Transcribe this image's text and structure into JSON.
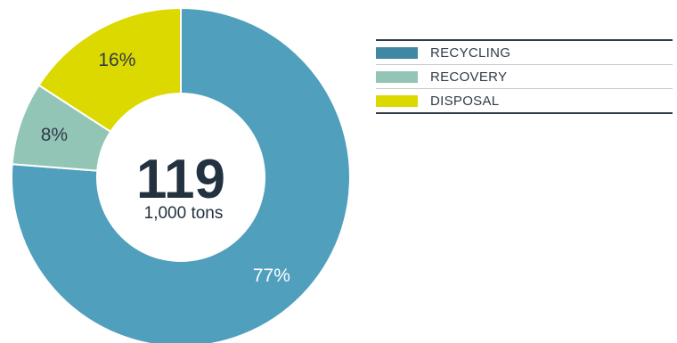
{
  "chart_data": {
    "type": "pie",
    "variant": "donut",
    "categories": [
      "RECYCLING",
      "RECOVERY",
      "DISPOSAL"
    ],
    "values": [
      77,
      8,
      16
    ],
    "value_labels": [
      "77%",
      "8%",
      "16%"
    ],
    "colors": [
      "#4f9fbd",
      "#93c5b7",
      "#dcd900"
    ],
    "legend_colors": [
      "#3f87a2",
      "#93c5b7",
      "#dcd900"
    ],
    "label_colors": [
      "#ffffff",
      "#2f3b48",
      "#2f3b48"
    ],
    "center_value": "119",
    "center_unit": "1,000 tons",
    "legend_position": "right"
  }
}
